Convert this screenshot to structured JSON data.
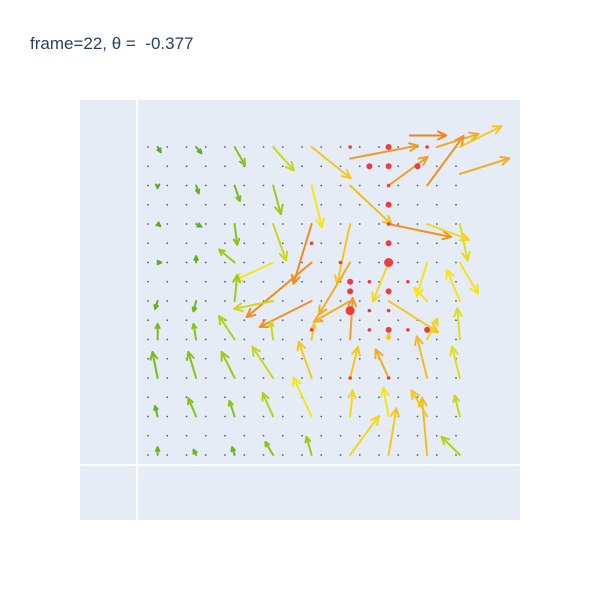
{
  "chart_data": {
    "type": "quiver",
    "title": "frame=22, θ =  -0.377",
    "grid": true,
    "background_color": "#e5ecf6",
    "grid_color": "#ffffff",
    "arrow_colorscale": [
      "#3f9e2d",
      "#8bc21a",
      "#f5e51a",
      "#f0a028",
      "#f07d14"
    ],
    "marker_color": "#ef3b3b",
    "grid_x": [
      0.0,
      1.0,
      2.0,
      3.0,
      4.0,
      5.0,
      6.0,
      7.0,
      8.0
    ],
    "grid_y": [
      0.0,
      1.0,
      2.0,
      3.0,
      4.0,
      5.0,
      6.0,
      7.0,
      8.0
    ],
    "small_dots_step": 0.5,
    "arrows": [
      {
        "x": 0.25,
        "y": 8.0,
        "u": 0.06,
        "v": -0.1,
        "m": 0.1
      },
      {
        "x": 1.25,
        "y": 8.0,
        "u": 0.1,
        "v": -0.12,
        "m": 0.12
      },
      {
        "x": 2.25,
        "y": 8.0,
        "u": 0.2,
        "v": -0.35,
        "m": 0.25
      },
      {
        "x": 3.25,
        "y": 8.0,
        "u": 0.4,
        "v": -0.45,
        "m": 0.4
      },
      {
        "x": 4.25,
        "y": 8.0,
        "u": 0.75,
        "v": -0.6,
        "m": 0.6
      },
      {
        "x": 5.25,
        "y": 7.7,
        "u": 1.3,
        "v": 0.25,
        "m": 0.8
      },
      {
        "x": 6.8,
        "y": 8.3,
        "u": 0.7,
        "v": 0.0,
        "m": 0.95
      },
      {
        "x": 7.5,
        "y": 8.0,
        "u": 0.8,
        "v": 0.25,
        "m": 0.7
      },
      {
        "x": 8.1,
        "y": 8.0,
        "u": 0.8,
        "v": 0.4,
        "m": 0.6
      },
      {
        "x": 0.25,
        "y": 7.0,
        "u": 0.0,
        "v": -0.05,
        "m": 0.1
      },
      {
        "x": 1.25,
        "y": 7.0,
        "u": 0.05,
        "v": -0.15,
        "m": 0.12
      },
      {
        "x": 2.25,
        "y": 7.0,
        "u": 0.1,
        "v": -0.3,
        "m": 0.2
      },
      {
        "x": 3.25,
        "y": 7.0,
        "u": 0.15,
        "v": -0.55,
        "m": 0.3
      },
      {
        "x": 4.25,
        "y": 7.0,
        "u": 0.2,
        "v": -0.8,
        "m": 0.5
      },
      {
        "x": 5.25,
        "y": 7.0,
        "u": 0.8,
        "v": -0.75,
        "m": 0.65
      },
      {
        "x": 6.25,
        "y": 7.0,
        "u": 0.75,
        "v": 0.55,
        "m": 0.75
      },
      {
        "x": 7.25,
        "y": 7.0,
        "u": 0.7,
        "v": 0.95,
        "m": 0.85
      },
      {
        "x": 8.1,
        "y": 7.3,
        "u": 0.95,
        "v": 0.3,
        "m": 0.7
      },
      {
        "x": 0.25,
        "y": 6.0,
        "u": 0.05,
        "v": -0.04,
        "m": 0.1
      },
      {
        "x": 1.25,
        "y": 6.0,
        "u": 0.1,
        "v": -0.05,
        "m": 0.12
      },
      {
        "x": 2.25,
        "y": 6.0,
        "u": 0.05,
        "v": -0.4,
        "m": 0.25
      },
      {
        "x": 3.25,
        "y": 6.0,
        "u": 0.25,
        "v": -0.7,
        "m": 0.4
      },
      {
        "x": 4.25,
        "y": 6.0,
        "u": -0.35,
        "v": -1.15,
        "m": 0.9
      },
      {
        "x": 5.25,
        "y": 6.0,
        "u": -0.25,
        "v": -1.15,
        "m": 0.6
      },
      {
        "x": 6.25,
        "y": 6.0,
        "u": 1.2,
        "v": -0.25,
        "m": 0.85
      },
      {
        "x": 7.25,
        "y": 6.0,
        "u": 0.8,
        "v": -0.3,
        "m": 0.55
      },
      {
        "x": 8.1,
        "y": 6.0,
        "u": 0.15,
        "v": -0.7,
        "m": 0.45
      },
      {
        "x": 0.25,
        "y": 5.0,
        "u": 0.07,
        "v": 0.0,
        "m": 0.1
      },
      {
        "x": 1.25,
        "y": 5.0,
        "u": 0.0,
        "v": 0.12,
        "m": 0.12
      },
      {
        "x": 2.25,
        "y": 5.0,
        "u": -0.3,
        "v": 0.25,
        "m": 0.3
      },
      {
        "x": 3.25,
        "y": 5.0,
        "u": -0.75,
        "v": -0.35,
        "m": 0.5
      },
      {
        "x": 4.25,
        "y": 5.0,
        "u": -1.25,
        "v": -1.05,
        "m": 0.9
      },
      {
        "x": 5.25,
        "y": 5.0,
        "u": -0.6,
        "v": -1.0,
        "m": 0.7
      },
      {
        "x": 6.25,
        "y": 5.0,
        "u": -0.3,
        "v": -0.75,
        "m": 0.55
      },
      {
        "x": 7.25,
        "y": 5.0,
        "u": -0.2,
        "v": -0.65,
        "m": 0.5
      },
      {
        "x": 8.1,
        "y": 5.0,
        "u": 0.35,
        "v": -0.6,
        "m": 0.5
      },
      {
        "x": 0.25,
        "y": 4.0,
        "u": -0.05,
        "v": -0.15,
        "m": 0.12
      },
      {
        "x": 1.25,
        "y": 4.0,
        "u": -0.05,
        "v": -0.2,
        "m": 0.15
      },
      {
        "x": 2.25,
        "y": 4.0,
        "u": 0.05,
        "v": 0.5,
        "m": 0.3
      },
      {
        "x": 3.25,
        "y": 4.0,
        "u": -0.75,
        "v": -0.15,
        "m": 0.4
      },
      {
        "x": 4.25,
        "y": 4.0,
        "u": -1.0,
        "v": -0.5,
        "m": 0.85
      },
      {
        "x": 5.25,
        "y": 4.0,
        "u": -0.7,
        "v": -0.4,
        "m": 0.7
      },
      {
        "x": 6.25,
        "y": 4.0,
        "u": 0.95,
        "v": -0.6,
        "m": 0.6
      },
      {
        "x": 7.25,
        "y": 4.0,
        "u": -0.25,
        "v": 0.25,
        "m": 0.5
      },
      {
        "x": 8.1,
        "y": 4.0,
        "u": -0.25,
        "v": 0.6,
        "m": 0.5
      },
      {
        "x": 0.25,
        "y": 3.0,
        "u": 0.0,
        "v": 0.3,
        "m": 0.2
      },
      {
        "x": 1.25,
        "y": 3.0,
        "u": -0.05,
        "v": 0.3,
        "m": 0.25
      },
      {
        "x": 2.25,
        "y": 3.0,
        "u": -0.3,
        "v": 0.45,
        "m": 0.35
      },
      {
        "x": 3.25,
        "y": 3.0,
        "u": -0.05,
        "v": 0.35,
        "m": 0.4
      },
      {
        "x": 4.25,
        "y": 3.0,
        "u": 0.05,
        "v": 0.3,
        "m": 0.6
      },
      {
        "x": 5.25,
        "y": 3.0,
        "u": 0.05,
        "v": 0.8,
        "m": 0.75
      },
      {
        "x": 6.25,
        "y": 3.0,
        "u": 0.0,
        "v": 0.1,
        "m": 0.6
      },
      {
        "x": 7.25,
        "y": 3.0,
        "u": 0.2,
        "v": 0.4,
        "m": 0.55
      },
      {
        "x": 8.1,
        "y": 3.0,
        "u": -0.05,
        "v": 0.6,
        "m": 0.45
      },
      {
        "x": 0.25,
        "y": 2.0,
        "u": -0.1,
        "v": 0.5,
        "m": 0.2
      },
      {
        "x": 1.25,
        "y": 2.0,
        "u": -0.15,
        "v": 0.5,
        "m": 0.25
      },
      {
        "x": 2.25,
        "y": 2.0,
        "u": -0.25,
        "v": 0.5,
        "m": 0.3
      },
      {
        "x": 3.25,
        "y": 2.0,
        "u": -0.4,
        "v": 0.6,
        "m": 0.4
      },
      {
        "x": 4.25,
        "y": 2.0,
        "u": -0.25,
        "v": 0.7,
        "m": 0.6
      },
      {
        "x": 5.25,
        "y": 2.0,
        "u": 0.15,
        "v": 0.6,
        "m": 0.6
      },
      {
        "x": 6.25,
        "y": 2.0,
        "u": -0.25,
        "v": 0.55,
        "m": 0.7
      },
      {
        "x": 7.25,
        "y": 2.0,
        "u": -0.2,
        "v": 0.8,
        "m": 0.65
      },
      {
        "x": 8.1,
        "y": 2.0,
        "u": -0.15,
        "v": 0.6,
        "m": 0.45
      },
      {
        "x": 0.25,
        "y": 1.0,
        "u": -0.05,
        "v": 0.2,
        "m": 0.15
      },
      {
        "x": 1.25,
        "y": 1.0,
        "u": -0.15,
        "v": 0.35,
        "m": 0.25
      },
      {
        "x": 2.25,
        "y": 1.0,
        "u": -0.1,
        "v": 0.3,
        "m": 0.25
      },
      {
        "x": 3.25,
        "y": 1.0,
        "u": -0.2,
        "v": 0.45,
        "m": 0.35
      },
      {
        "x": 4.25,
        "y": 1.0,
        "u": -0.35,
        "v": 0.75,
        "m": 0.5
      },
      {
        "x": 5.25,
        "y": 1.0,
        "u": 0.05,
        "v": 0.5,
        "m": 0.55
      },
      {
        "x": 6.25,
        "y": 1.0,
        "u": -0.1,
        "v": 0.55,
        "m": 0.5
      },
      {
        "x": 7.25,
        "y": 1.0,
        "u": -0.3,
        "v": 0.5,
        "m": 0.6
      },
      {
        "x": 8.1,
        "y": 1.0,
        "u": -0.1,
        "v": 0.4,
        "m": 0.4
      },
      {
        "x": 0.25,
        "y": 0.0,
        "u": 0.0,
        "v": 0.15,
        "m": 0.15
      },
      {
        "x": 1.25,
        "y": 0.0,
        "u": -0.05,
        "v": 0.1,
        "m": 0.15
      },
      {
        "x": 2.25,
        "y": 0.0,
        "u": -0.05,
        "v": 0.15,
        "m": 0.15
      },
      {
        "x": 3.25,
        "y": 0.0,
        "u": -0.15,
        "v": 0.25,
        "m": 0.25
      },
      {
        "x": 4.25,
        "y": 0.0,
        "u": -0.1,
        "v": 0.35,
        "m": 0.3
      },
      {
        "x": 5.25,
        "y": 0.0,
        "u": 0.55,
        "v": 0.75,
        "m": 0.55
      },
      {
        "x": 6.25,
        "y": 0.0,
        "u": 0.15,
        "v": 0.9,
        "m": 0.6
      },
      {
        "x": 7.25,
        "y": 0.0,
        "u": -0.1,
        "v": 1.1,
        "m": 0.65
      },
      {
        "x": 8.1,
        "y": 0.0,
        "u": -0.35,
        "v": 0.35,
        "m": 0.35
      }
    ],
    "red_markers": [
      {
        "x": 5.25,
        "y": 8.0,
        "s": 1
      },
      {
        "x": 6.25,
        "y": 8.0,
        "s": 2
      },
      {
        "x": 7.25,
        "y": 8.0,
        "s": 1
      },
      {
        "x": 5.75,
        "y": 7.5,
        "s": 2
      },
      {
        "x": 6.25,
        "y": 7.5,
        "s": 2
      },
      {
        "x": 7.0,
        "y": 7.5,
        "s": 2
      },
      {
        "x": 6.25,
        "y": 7.0,
        "s": 1
      },
      {
        "x": 6.25,
        "y": 6.5,
        "s": 2
      },
      {
        "x": 6.25,
        "y": 6.0,
        "s": 1
      },
      {
        "x": 4.25,
        "y": 5.5,
        "s": 1
      },
      {
        "x": 6.25,
        "y": 5.5,
        "s": 2
      },
      {
        "x": 6.25,
        "y": 5.0,
        "s": 3
      },
      {
        "x": 5.0,
        "y": 5.0,
        "s": 1
      },
      {
        "x": 5.25,
        "y": 4.5,
        "s": 2
      },
      {
        "x": 5.75,
        "y": 4.5,
        "s": 1
      },
      {
        "x": 6.75,
        "y": 4.5,
        "s": 1
      },
      {
        "x": 5.25,
        "y": 4.25,
        "s": 2
      },
      {
        "x": 6.25,
        "y": 4.25,
        "s": 2
      },
      {
        "x": 5.25,
        "y": 3.75,
        "s": 3
      },
      {
        "x": 5.75,
        "y": 3.75,
        "s": 1
      },
      {
        "x": 6.25,
        "y": 3.75,
        "s": 1
      },
      {
        "x": 5.75,
        "y": 3.25,
        "s": 1
      },
      {
        "x": 6.25,
        "y": 3.25,
        "s": 2
      },
      {
        "x": 6.75,
        "y": 3.25,
        "s": 1
      },
      {
        "x": 7.25,
        "y": 3.25,
        "s": 2
      },
      {
        "x": 4.25,
        "y": 3.25,
        "s": 1
      },
      {
        "x": 5.25,
        "y": 2.0,
        "s": 1
      },
      {
        "x": 6.25,
        "y": 2.0,
        "s": 1
      }
    ]
  }
}
